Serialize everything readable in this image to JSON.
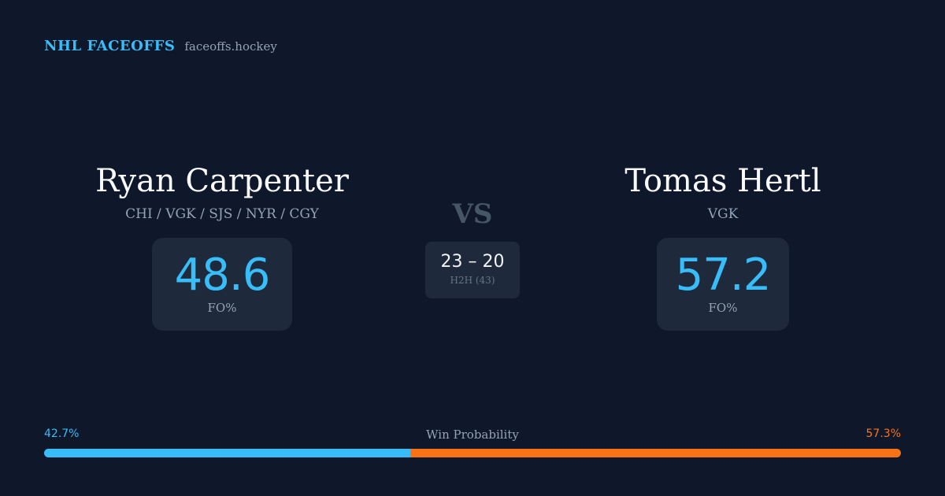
{
  "brand": {
    "name": "NHL FACEOFFS",
    "site": "faceoffs.hockey"
  },
  "player_left": {
    "name": "Ryan Carpenter",
    "teams": "CHI / VGK / SJS / NYR / CGY",
    "stat_value": "48.6",
    "stat_label": "FO%"
  },
  "player_right": {
    "name": "Tomas Hertl",
    "teams": "VGK",
    "stat_value": "57.2",
    "stat_label": "FO%"
  },
  "matchup": {
    "vs_label": "VS",
    "h2h_score": "23 – 20",
    "h2h_label": "H2H (43)"
  },
  "win_probability": {
    "title": "Win Probability",
    "left_label": "42.7%",
    "right_label": "57.3%",
    "left_fraction": 0.427,
    "right_fraction": 0.573,
    "left_color": "#38bdf8",
    "right_color": "#f97316"
  },
  "colors": {
    "background": "#0f172a",
    "card": "#1e293b",
    "accent": "#38bdf8",
    "accent_secondary": "#f97316",
    "muted_text": "#94a3b8"
  }
}
